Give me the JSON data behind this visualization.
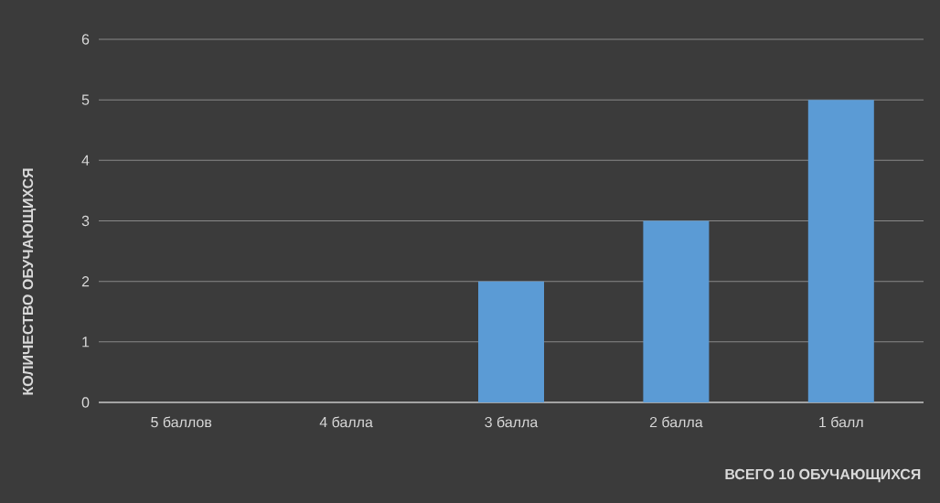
{
  "chart_data": {
    "type": "bar",
    "xlabel": "ВСЕГО 10 ОБУЧАЮЩИХСЯ",
    "ylabel": "КОЛИЧЕСТВО ОБУЧАЮЩИХСЯ",
    "categories": [
      "5 баллов",
      "4 балла",
      "3 балла",
      "2 балла",
      "1 балл"
    ],
    "values": [
      0,
      0,
      2,
      3,
      5
    ],
    "color": "#5b9bd5",
    "ylim": [
      0,
      6
    ],
    "yticks": [
      0,
      1,
      2,
      3,
      4,
      5,
      6
    ],
    "grid": "y"
  }
}
